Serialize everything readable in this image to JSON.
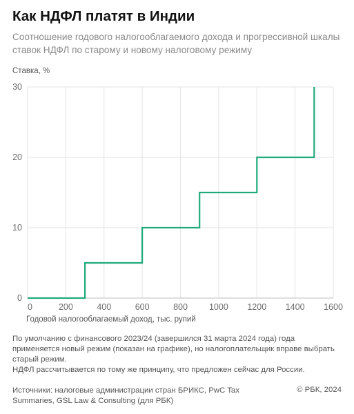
{
  "title": "Как НДФЛ платят в Индии",
  "subtitle": "Соотношение годового налогооблагаемого дохода и прогрессивной шкалы ставок НДФЛ по старому и новому налоговому режиму",
  "chart_data": {
    "type": "line",
    "step": true,
    "ylabel": "Ставка, %",
    "xlabel": "Годовой налогооблагаемый доход, тыс. рупий",
    "xlim": [
      0,
      1600
    ],
    "ylim": [
      0,
      30
    ],
    "x_ticks": [
      0,
      200,
      400,
      600,
      800,
      1000,
      1200,
      1400,
      1600
    ],
    "y_ticks": [
      0,
      10,
      20,
      30
    ],
    "grid": true,
    "color": "#1faa7c",
    "points": [
      {
        "x": 0,
        "y": 0
      },
      {
        "x": 300,
        "y": 0
      },
      {
        "x": 300,
        "y": 5
      },
      {
        "x": 600,
        "y": 5
      },
      {
        "x": 600,
        "y": 10
      },
      {
        "x": 900,
        "y": 10
      },
      {
        "x": 900,
        "y": 15
      },
      {
        "x": 1200,
        "y": 15
      },
      {
        "x": 1200,
        "y": 20
      },
      {
        "x": 1500,
        "y": 20
      },
      {
        "x": 1500,
        "y": 30
      }
    ]
  },
  "note_lines": [
    "По умолчанию с финансового 2023/24 (завершился 31 марта 2024 года) года применяется новый режим (показан на графике), но налогоплательщик вправе выбрать старый режим.",
    "НДФЛ рассчитывается по тому же принципу, что предложен сейчас для России."
  ],
  "source": "Источники: налоговые администрации стран БРИКС, PwC Tax Summaries, GSL Law & Consulting (для РБК)",
  "copyright": "© РБК, 2024"
}
